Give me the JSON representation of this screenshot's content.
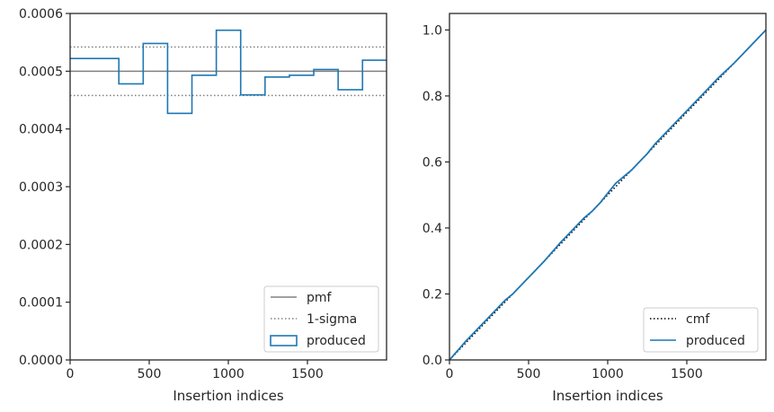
{
  "chart_data": [
    {
      "type": "step",
      "xlabel": "Insertion indices",
      "ylabel": "",
      "xlim": [
        0,
        2000
      ],
      "ylim": [
        0,
        0.0006
      ],
      "xticks": [
        0,
        500,
        1000,
        1500
      ],
      "xtick_labels": [
        "0",
        "500",
        "1000",
        "1500"
      ],
      "yticks": [
        0,
        0.0001,
        0.0002,
        0.0003,
        0.0004,
        0.0005,
        0.0006
      ],
      "ytick_labels": [
        "0.0000",
        "0.0001",
        "0.0002",
        "0.0003",
        "0.0004",
        "0.0005",
        "0.0006"
      ],
      "grid": false,
      "legend_position": "lower-right",
      "lines": [
        {
          "name": "pmf",
          "y": 0.0005,
          "style": "solid",
          "color": "#808080"
        },
        {
          "name": "1-sigma",
          "y": [
            0.000542,
            0.000458
          ],
          "style": "dotted",
          "color": "#808080"
        }
      ],
      "series": [
        {
          "name": "produced",
          "color": "#1f77b4",
          "bin_edges": [
            0,
            308,
            462,
            616,
            770,
            924,
            1078,
            1232,
            1386,
            1540,
            1694,
            1848,
            2000
          ],
          "values": [
            0.000522,
            0.000478,
            0.000548,
            0.000427,
            0.000493,
            0.000571,
            0.000459,
            0.00049,
            0.000493,
            0.000503,
            0.000468,
            0.000519
          ]
        }
      ],
      "legend": [
        "pmf",
        "1-sigma",
        "produced"
      ]
    },
    {
      "type": "line",
      "xlabel": "Insertion indices",
      "ylabel": "",
      "xlim": [
        0,
        2000
      ],
      "ylim": [
        0,
        1.05
      ],
      "xticks": [
        0,
        500,
        1000,
        1500
      ],
      "xtick_labels": [
        "0",
        "500",
        "1000",
        "1500"
      ],
      "yticks": [
        0,
        0.2,
        0.4,
        0.6,
        0.8,
        1.0
      ],
      "ytick_labels": [
        "0.0",
        "0.2",
        "0.4",
        "0.6",
        "0.8",
        "1.0"
      ],
      "grid": false,
      "legend_position": "lower-right",
      "series": [
        {
          "name": "cmf",
          "style": "dotted",
          "color": "#000000",
          "x": [
            0,
            2000
          ],
          "y": [
            0,
            1.0
          ]
        },
        {
          "name": "produced",
          "style": "solid",
          "color": "#1f77b4",
          "x": [
            0,
            100,
            200,
            300,
            350,
            400,
            500,
            600,
            700,
            800,
            850,
            900,
            950,
            1000,
            1050,
            1100,
            1150,
            1200,
            1250,
            1300,
            1400,
            1500,
            1600,
            1700,
            1800,
            1900,
            2000
          ],
          "y": [
            0,
            0.055,
            0.105,
            0.155,
            0.18,
            0.2,
            0.25,
            0.3,
            0.355,
            0.405,
            0.43,
            0.45,
            0.475,
            0.505,
            0.535,
            0.555,
            0.575,
            0.6,
            0.625,
            0.655,
            0.705,
            0.755,
            0.805,
            0.855,
            0.9,
            0.95,
            1.0
          ]
        }
      ],
      "legend": [
        "cmf",
        "produced"
      ]
    }
  ]
}
